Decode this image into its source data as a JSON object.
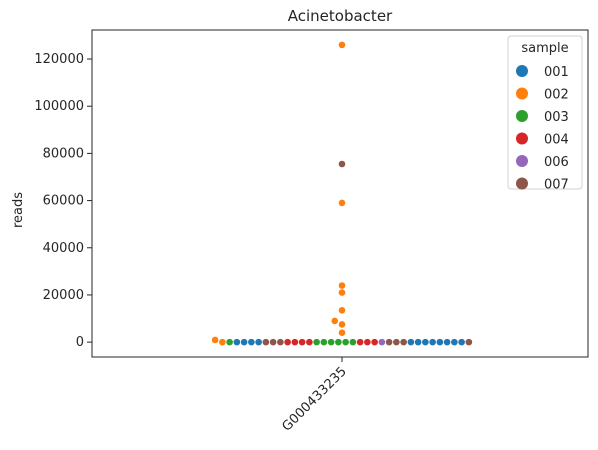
{
  "chart_data": {
    "type": "scatter",
    "title": "Acinetobacter",
    "xlabel": "",
    "ylabel": "reads",
    "categories": [
      "G000433235"
    ],
    "ylim": [
      -6300,
      132300
    ],
    "yticks": [
      0,
      20000,
      40000,
      60000,
      80000,
      100000,
      120000
    ],
    "grid": false,
    "legend": {
      "title": "sample",
      "placement": "top-right",
      "entries": [
        "001",
        "002",
        "003",
        "004",
        "006",
        "007"
      ]
    },
    "colors": {
      "001": "#1f77b4",
      "002": "#ff7f0e",
      "003": "#2ca02c",
      "004": "#d62728",
      "006": "#9467bd",
      "007": "#8c564b"
    },
    "series": [
      {
        "name": "001",
        "values": [
          0,
          0,
          0,
          0,
          0,
          0,
          0,
          0,
          0,
          0,
          0,
          0
        ]
      },
      {
        "name": "002",
        "values": [
          126000,
          59000,
          24000,
          21000,
          13500,
          9000,
          7500,
          4000,
          500,
          0
        ]
      },
      {
        "name": "003",
        "values": [
          0,
          0,
          0,
          0,
          0,
          0,
          0
        ]
      },
      {
        "name": "004",
        "values": [
          0,
          0,
          0,
          0,
          0,
          0,
          0
        ]
      },
      {
        "name": "006",
        "values": [
          0
        ]
      },
      {
        "name": "007",
        "values": [
          75500,
          0,
          0,
          0,
          0,
          0,
          0,
          0
        ]
      }
    ]
  }
}
